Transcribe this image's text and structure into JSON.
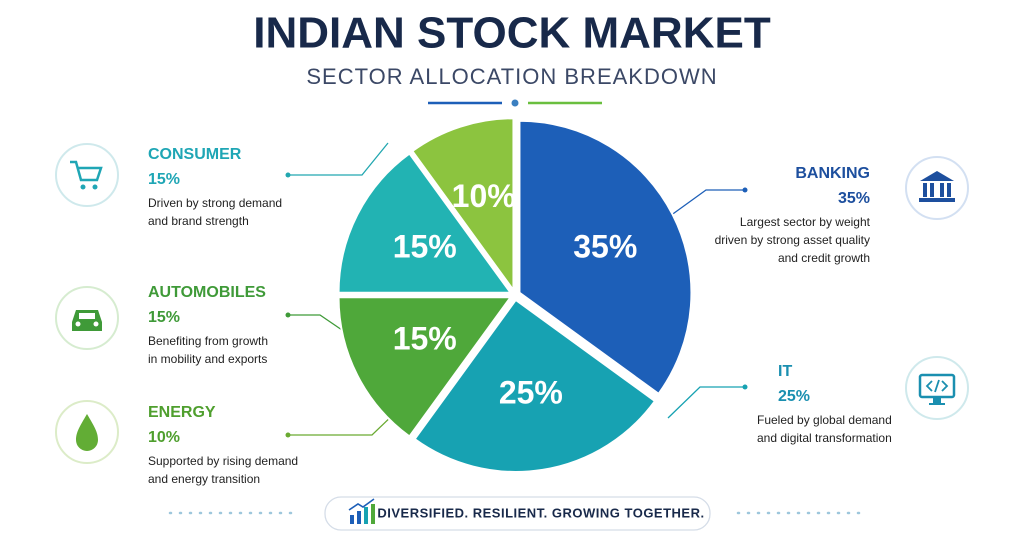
{
  "chart_data": {
    "type": "pie",
    "title": "INDIAN STOCK MARKET",
    "subtitle": "SECTOR ALLOCATION BREAKDOWN",
    "categories": [
      "BANKING",
      "IT",
      "AUTOMOBILES",
      "CONSUMER",
      "ENERGY"
    ],
    "values": [
      35,
      25,
      15,
      15,
      10
    ],
    "value_labels": [
      "35%",
      "25%",
      "15%",
      "15%",
      "10%"
    ],
    "colors": [
      "#1d5fb8",
      "#17a2b2",
      "#4fa83a",
      "#22b3b3",
      "#8cc43f"
    ],
    "descriptions": [
      [
        "Largest sector by weight",
        "driven by strong asset quality",
        "and credit growth"
      ],
      [
        "Fueled by global demand",
        "and digital transformation"
      ],
      [
        "Benefiting from growth",
        "in mobility and exports"
      ],
      [
        "Driven by strong demand",
        "and brand strength"
      ],
      [
        "Supported by rising demand",
        "and energy transition"
      ]
    ],
    "tagline": "DIVERSIFIED. RESILIENT. GROWING TOGETHER."
  }
}
